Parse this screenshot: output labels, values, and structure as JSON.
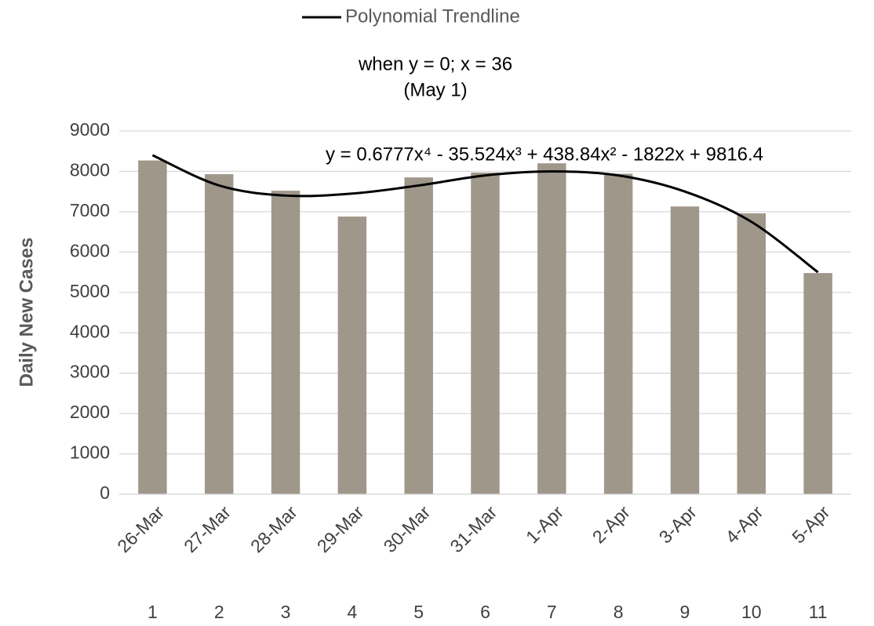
{
  "chart_data": {
    "type": "bar",
    "y_axis_label": "Daily New Cases",
    "annotation_lines": [
      "when y = 0; x = 36",
      "(May 1)"
    ],
    "equation": "y = 0.6777x⁴ - 35.524x³ + 438.84x² - 1822x + 9816.4",
    "categories": [
      "26-Mar",
      "27-Mar",
      "28-Mar",
      "29-Mar",
      "30-Mar",
      "31-Mar",
      "1-Apr",
      "2-Apr",
      "3-Apr",
      "4-Apr",
      "5-Apr"
    ],
    "x_index": [
      1,
      2,
      3,
      4,
      5,
      6,
      7,
      8,
      9,
      10,
      11
    ],
    "values": [
      8270,
      7930,
      7520,
      6880,
      7850,
      7970,
      8200,
      7940,
      7130,
      6960,
      5480
    ],
    "color": "#a0978b",
    "series": [
      {
        "name": "Polynomial Trendline",
        "color": "#000000",
        "values": [
          8400,
          7650,
          7400,
          7450,
          7650,
          7900,
          8000,
          7900,
          7500,
          6750,
          5500
        ]
      }
    ],
    "ylim": [
      0,
      9000
    ],
    "yticks": [
      0,
      1000,
      2000,
      3000,
      4000,
      5000,
      6000,
      7000,
      8000,
      9000
    ],
    "grid": true
  }
}
